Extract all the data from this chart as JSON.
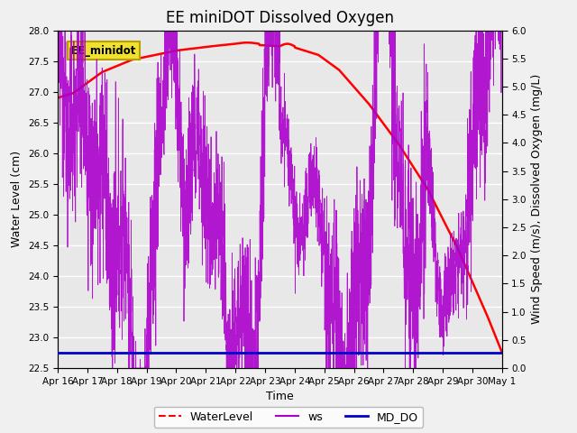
{
  "title": "EE miniDOT Dissolved Oxygen",
  "xlabel": "Time",
  "ylabel_left": "Water Level (cm)",
  "ylabel_right": "Wind Speed (m/s), Dissolved Oxygen (mg/L)",
  "ylim_left": [
    22.5,
    28.0
  ],
  "ylim_right": [
    0.0,
    6.0
  ],
  "yticks_left": [
    22.5,
    23.0,
    23.5,
    24.0,
    24.5,
    25.0,
    25.5,
    26.0,
    26.5,
    27.0,
    27.5,
    28.0
  ],
  "yticks_right": [
    0.0,
    0.5,
    1.0,
    1.5,
    2.0,
    2.5,
    3.0,
    3.5,
    4.0,
    4.5,
    5.0,
    5.5,
    6.0
  ],
  "xtick_labels": [
    "Apr 16",
    "Apr 17",
    "Apr 18",
    "Apr 19",
    "Apr 20",
    "Apr 21",
    "Apr 22",
    "Apr 23",
    "Apr 24",
    "Apr 25",
    "Apr 26",
    "Apr 27",
    "Apr 28",
    "Apr 29",
    "Apr 30",
    "May 1"
  ],
  "annotation_text": "EE_minidot",
  "water_level_color": "#ff0000",
  "ws_color": "#aa00cc",
  "md_do_color": "#0000cc",
  "background_color": "#e8e8e8",
  "grid_color": "#ffffff",
  "title_fontsize": 12,
  "tick_labelsize": 7.5,
  "axis_labelsize": 9,
  "n_days": 15
}
